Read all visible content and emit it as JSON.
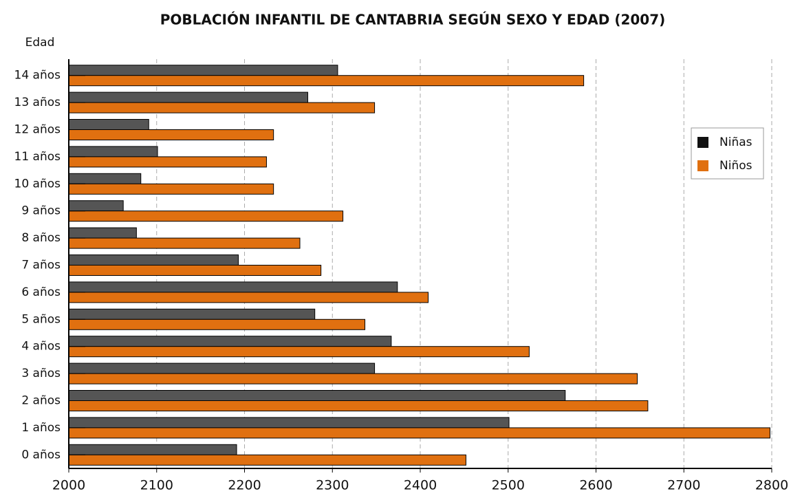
{
  "chart_data": {
    "type": "bar",
    "orientation": "horizontal",
    "title": "POBLACIÓN INFANTIL DE CANTABRIA SEGÚN SEXO Y EDAD (2007)",
    "y_label": "Edad",
    "categories": [
      "0 años",
      "1 años",
      "2 años",
      "3 años",
      "4 años",
      "5 años",
      "6 años",
      "7 años",
      "8 años",
      "9 años",
      "10 años",
      "11 años",
      "12 años",
      "13 años",
      "14 años"
    ],
    "series": [
      {
        "name": "Niñas",
        "color": "#555555",
        "values": [
          2191,
          2501,
          2565,
          2348,
          2367,
          2280,
          2374,
          2193,
          2077,
          2062,
          2082,
          2101,
          2091,
          2272,
          2306
        ]
      },
      {
        "name": "Niños",
        "color": "#e07010",
        "values": [
          2452,
          2798,
          2659,
          2647,
          2524,
          2337,
          2409,
          2287,
          2263,
          2312,
          2233,
          2225,
          2233,
          2348,
          2586
        ]
      }
    ],
    "xlim": [
      2000,
      2800
    ],
    "xticks": [
      2000,
      2100,
      2200,
      2300,
      2400,
      2500,
      2600,
      2700,
      2800
    ],
    "grid": true,
    "legend": "right"
  }
}
